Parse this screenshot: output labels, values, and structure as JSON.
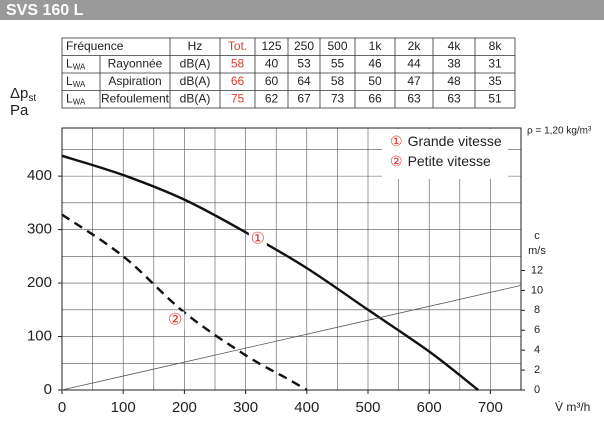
{
  "header": {
    "title": "SVS 160 L"
  },
  "table": {
    "head": [
      "Fréquence",
      "Hz",
      "Tot.",
      "125",
      "250",
      "500",
      "1k",
      "2k",
      "4k",
      "8k"
    ],
    "rows": [
      {
        "symbol": "L",
        "sub": "WA",
        "name": "Rayonnée",
        "unit": "dB(A)",
        "total": 58,
        "values": [
          40,
          53,
          55,
          46,
          44,
          38,
          31
        ]
      },
      {
        "symbol": "L",
        "sub": "WA",
        "name": "Aspiration",
        "unit": "dB(A)",
        "total": 66,
        "values": [
          60,
          64,
          58,
          50,
          47,
          48,
          35
        ]
      },
      {
        "symbol": "L",
        "sub": "WA",
        "name": "Refoulement",
        "unit": "dB(A)",
        "total": 75,
        "values": [
          62,
          67,
          73,
          66,
          63,
          63,
          51
        ]
      }
    ],
    "total_color": "#e03c31"
  },
  "chart_data": {
    "type": "line",
    "ylabel": {
      "text": "Δp",
      "sub": "st",
      "unit": "Pa"
    },
    "xlabel": "V̇ m³/h",
    "y2label": {
      "symbol": "c",
      "unit": "m/s"
    },
    "annotation": "ρ = 1,20 kg/m³",
    "xlim": [
      0,
      750
    ],
    "ylim": [
      0,
      490
    ],
    "y2lim": [
      0,
      26.3
    ],
    "xticks": [
      0,
      100,
      200,
      300,
      400,
      500,
      600,
      700
    ],
    "yticks": [
      0,
      100,
      200,
      300,
      400
    ],
    "y2ticks": [
      0,
      2,
      4,
      6,
      8,
      10,
      12
    ],
    "xgrid": [
      0,
      50,
      100,
      150,
      200,
      250,
      300,
      350,
      400,
      450,
      500,
      550,
      600,
      650,
      700,
      750
    ],
    "ygrid": [
      0,
      50,
      100,
      150,
      200,
      250,
      300,
      350,
      400,
      450
    ],
    "series": [
      {
        "name": "Grande vitesse",
        "marker": "①",
        "color": "#111111",
        "dash": false,
        "x": [
          0,
          100,
          200,
          300,
          400,
          500,
          600,
          680
        ],
        "values": [
          438,
          402,
          356,
          295,
          228,
          150,
          72,
          0
        ]
      },
      {
        "name": "Petite vitesse",
        "marker": "②",
        "color": "#111111",
        "dash": true,
        "x": [
          0,
          100,
          200,
          300,
          370,
          400
        ],
        "values": [
          328,
          250,
          145,
          65,
          20,
          0
        ]
      },
      {
        "name": null,
        "marker": null,
        "color": "#555555",
        "dash": false,
        "axis": "y2",
        "thin": true,
        "x": [
          0,
          750
        ],
        "values": [
          0,
          10.5
        ]
      }
    ],
    "curve_labels": [
      {
        "series": 0,
        "x": 320,
        "y": 282
      },
      {
        "series": 1,
        "x": 185,
        "y": 130
      }
    ],
    "marker_color": "#e03c31"
  }
}
